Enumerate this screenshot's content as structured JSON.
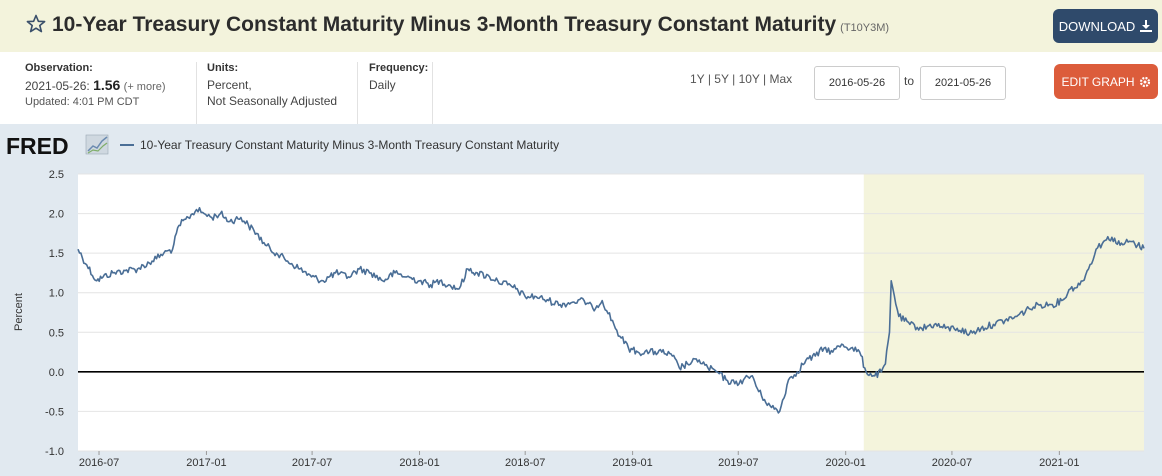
{
  "header": {
    "title": "10-Year Treasury Constant Maturity Minus 3-Month Treasury Constant Maturity",
    "series_id": "(T10Y3M)",
    "download_label": "DOWNLOAD",
    "download_icon": "download-icon",
    "star_icon": "star-outline-icon"
  },
  "meta": {
    "observation_label": "Observation:",
    "observation_date": "2021-05-26:",
    "observation_value": "1.56",
    "observation_more": "(+ more)",
    "updated": "Updated: 4:01 PM CDT",
    "units_label": "Units:",
    "units_line1": "Percent,",
    "units_line2": "Not Seasonally Adjusted",
    "frequency_label": "Frequency:",
    "frequency_value": "Daily"
  },
  "controls": {
    "range_1y": "1Y",
    "range_5y": "5Y",
    "range_10y": "10Y",
    "range_max": "Max",
    "sep": "|",
    "start_date": "2016-05-26",
    "to_label": "to",
    "end_date": "2021-05-26",
    "edit_label": "EDIT GRAPH",
    "edit_icon": "gear-icon"
  },
  "colors": {
    "line": "#4a6e96",
    "recession_shade": "#f4f4dc",
    "zero_line": "#000000",
    "download_bg": "#2f4a6b",
    "edit_bg": "#dc5c3b"
  },
  "chart_data": {
    "type": "line",
    "logo": "FRED",
    "legend": "10-Year Treasury Constant Maturity Minus 3-Month Treasury Constant Maturity",
    "ylabel": "Percent",
    "ylim": [
      -1.0,
      2.5
    ],
    "y_ticks": [
      "2.5",
      "2.0",
      "1.5",
      "1.0",
      "0.5",
      "0.0",
      "-0.5",
      "-1.0"
    ],
    "x_ticks": [
      "2016-07",
      "2017-01",
      "2017-07",
      "2018-01",
      "2018-07",
      "2019-01",
      "2019-07",
      "2020-01",
      "2020-07",
      "2021-01"
    ],
    "xlim": [
      "2016-05-26",
      "2021-05-26"
    ],
    "recession_shading": [
      "2020-02-01",
      "2021-05-26"
    ],
    "reference_line": 0,
    "series": [
      {
        "x": [
          "2016-05-26",
          "2016-06-10",
          "2016-06-27",
          "2016-07-08",
          "2016-07-25",
          "2016-08-15",
          "2016-09-05",
          "2016-09-30",
          "2016-10-20",
          "2016-11-04",
          "2016-11-15",
          "2016-12-01",
          "2016-12-15",
          "2016-12-28",
          "2017-01-10",
          "2017-01-25",
          "2017-02-10",
          "2017-03-01",
          "2017-03-14",
          "2017-03-28",
          "2017-04-12",
          "2017-05-01",
          "2017-05-20",
          "2017-06-10",
          "2017-06-30",
          "2017-07-20",
          "2017-08-10",
          "2017-09-01",
          "2017-09-20",
          "2017-10-10",
          "2017-10-30",
          "2017-11-20",
          "2017-12-10",
          "2018-01-01",
          "2018-01-20",
          "2018-02-05",
          "2018-02-20",
          "2018-03-10",
          "2018-03-25",
          "2018-04-10",
          "2018-05-01",
          "2018-05-15",
          "2018-06-01",
          "2018-06-15",
          "2018-07-01",
          "2018-07-20",
          "2018-08-10",
          "2018-08-30",
          "2018-09-20",
          "2018-10-10",
          "2018-10-25",
          "2018-11-10",
          "2018-11-30",
          "2018-12-10",
          "2018-12-25",
          "2019-01-10",
          "2019-01-30",
          "2019-02-20",
          "2019-03-10",
          "2019-03-22",
          "2019-04-05",
          "2019-04-25",
          "2019-05-10",
          "2019-05-25",
          "2019-06-10",
          "2019-06-25",
          "2019-07-10",
          "2019-07-25",
          "2019-08-05",
          "2019-08-15",
          "2019-08-27",
          "2019-09-10",
          "2019-09-25",
          "2019-10-10",
          "2019-10-25",
          "2019-11-10",
          "2019-11-25",
          "2019-12-10",
          "2019-12-25",
          "2020-01-10",
          "2020-01-25",
          "2020-02-05",
          "2020-02-20",
          "2020-03-02",
          "2020-03-09",
          "2020-03-16",
          "2020-03-19",
          "2020-04-01",
          "2020-04-20",
          "2020-05-10",
          "2020-06-01",
          "2020-06-20",
          "2020-07-10",
          "2020-07-31",
          "2020-08-20",
          "2020-09-10",
          "2020-09-30",
          "2020-10-20",
          "2020-11-10",
          "2020-11-30",
          "2020-12-20",
          "2021-01-05",
          "2021-01-20",
          "2021-02-05",
          "2021-02-20",
          "2021-03-05",
          "2021-03-18",
          "2021-04-01",
          "2021-04-15",
          "2021-05-01",
          "2021-05-15",
          "2021-05-26"
        ],
        "values": [
          1.55,
          1.35,
          1.15,
          1.2,
          1.25,
          1.28,
          1.3,
          1.4,
          1.5,
          1.55,
          1.85,
          1.95,
          2.05,
          2.0,
          1.95,
          2.0,
          1.9,
          1.95,
          1.85,
          1.75,
          1.6,
          1.5,
          1.4,
          1.3,
          1.2,
          1.15,
          1.25,
          1.2,
          1.3,
          1.25,
          1.15,
          1.25,
          1.2,
          1.15,
          1.1,
          1.15,
          1.1,
          1.05,
          1.3,
          1.25,
          1.2,
          1.15,
          1.1,
          1.05,
          0.95,
          0.95,
          0.9,
          0.85,
          0.88,
          0.9,
          0.8,
          0.9,
          0.6,
          0.45,
          0.3,
          0.25,
          0.25,
          0.25,
          0.2,
          0.05,
          0.1,
          0.15,
          0.05,
          0.0,
          -0.1,
          -0.15,
          -0.1,
          -0.05,
          -0.25,
          -0.35,
          -0.45,
          -0.5,
          -0.1,
          0.0,
          0.15,
          0.2,
          0.3,
          0.25,
          0.35,
          0.3,
          0.25,
          0.0,
          -0.05,
          0.0,
          0.1,
          0.5,
          1.15,
          0.7,
          0.6,
          0.55,
          0.6,
          0.55,
          0.55,
          0.48,
          0.55,
          0.6,
          0.65,
          0.7,
          0.8,
          0.85,
          0.85,
          0.9,
          1.05,
          1.1,
          1.3,
          1.55,
          1.65,
          1.7,
          1.6,
          1.65,
          1.6,
          1.56
        ]
      }
    ]
  }
}
